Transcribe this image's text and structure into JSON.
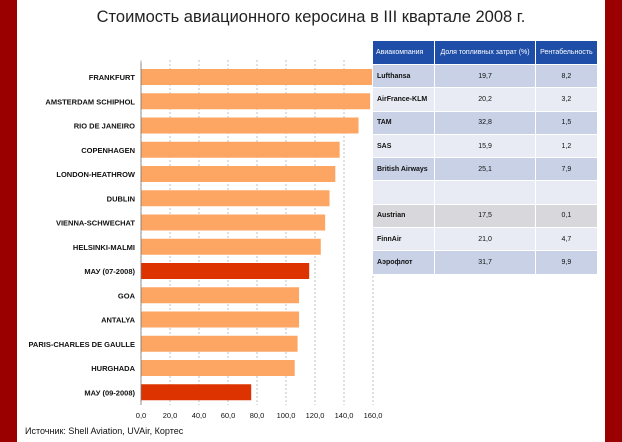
{
  "title": "Стоимость авиационного керосина в III квартале 2008 г.",
  "source": "Источник: Shell Aviation, UVAir, Кортес",
  "chart_data": {
    "type": "bar",
    "orientation": "horizontal",
    "title": "Стоимость авиационного керосина в III квартале 2008 г.",
    "categories": [
      "FRANKFURT",
      "AMSTERDAM SCHIPHOL",
      "RIO DE JANEIRO",
      "COPENHAGEN",
      "LONDON-HEATHROW",
      "DUBLIN",
      "VIENNA-SCHWECHAT",
      "HELSINKI-MALMI",
      "МАУ (07-2008)",
      "GOA",
      "ANTALYA",
      "PARIS-CHARLES DE GAULLE",
      "HURGHADA",
      "МАУ (09-2008)"
    ],
    "values": [
      160,
      158,
      150,
      137,
      134,
      130,
      127,
      124,
      116,
      109,
      109,
      108,
      106,
      76
    ],
    "highlight": [
      false,
      false,
      false,
      false,
      false,
      false,
      false,
      false,
      true,
      false,
      false,
      false,
      false,
      true
    ],
    "xlim": [
      0,
      160
    ],
    "xticks": [
      "0,0",
      "20,0",
      "40,0",
      "60,0",
      "80,0",
      "100,0",
      "120,0",
      "140,0",
      "160,0"
    ],
    "grid": true,
    "colors": {
      "bar": "#fda663",
      "highlight": "#dd3300",
      "grid": "#999999"
    }
  },
  "table": {
    "headers": [
      "Авиакомпания",
      "Доля топливных затрат (%)",
      "Рентабельность"
    ],
    "rows": [
      {
        "name": "Lufthansa",
        "share": "19,7",
        "profit": "8,2"
      },
      {
        "name": "AirFrance-KLM",
        "share": "20,2",
        "profit": "3,2"
      },
      {
        "name": "TAM",
        "share": "32,8",
        "profit": "1,5"
      },
      {
        "name": "SAS",
        "share": "15,9",
        "profit": "1,2"
      },
      {
        "name": "British Airways",
        "share": "25,1",
        "profit": "7,9"
      },
      {
        "name": "",
        "share": "",
        "profit": ""
      },
      {
        "name": "Austrian",
        "share": "17,5",
        "profit": "0,1"
      },
      {
        "name": "FinnAir",
        "share": "21,0",
        "profit": "4,7"
      },
      {
        "name": "Аэрофлот",
        "share": "31,7",
        "profit": "9,9"
      }
    ]
  }
}
